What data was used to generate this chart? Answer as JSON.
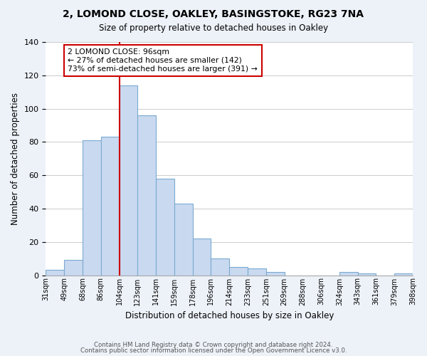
{
  "title1": "2, LOMOND CLOSE, OAKLEY, BASINGSTOKE, RG23 7NA",
  "title2": "Size of property relative to detached houses in Oakley",
  "xlabel": "Distribution of detached houses by size in Oakley",
  "ylabel": "Number of detached properties",
  "bin_edges_labels": [
    "31sqm",
    "49sqm",
    "68sqm",
    "86sqm",
    "104sqm",
    "123sqm",
    "141sqm",
    "159sqm",
    "178sqm",
    "196sqm",
    "214sqm",
    "233sqm",
    "251sqm",
    "269sqm",
    "288sqm",
    "306sqm",
    "324sqm",
    "343sqm",
    "361sqm",
    "379sqm",
    "398sqm"
  ],
  "bar_heights": [
    3,
    9,
    81,
    83,
    114,
    96,
    58,
    43,
    22,
    10,
    5,
    4,
    2,
    0,
    0,
    0,
    2,
    1,
    0,
    1
  ],
  "bar_color": "#c9d9f0",
  "bar_edge_color": "#7aaad0",
  "vline_x_index": 4,
  "vline_color": "#cc0000",
  "annotation_title": "2 LOMOND CLOSE: 96sqm",
  "annotation_line1": "← 27% of detached houses are smaller (142)",
  "annotation_line2": "73% of semi-detached houses are larger (391) →",
  "annotation_box_color": "#cc0000",
  "ylim": [
    0,
    140
  ],
  "yticks": [
    0,
    20,
    40,
    60,
    80,
    100,
    120,
    140
  ],
  "footer1": "Contains HM Land Registry data © Crown copyright and database right 2024.",
  "footer2": "Contains public sector information licensed under the Open Government Licence v3.0.",
  "background_color": "#edf2f9",
  "plot_background_color": "#ffffff"
}
